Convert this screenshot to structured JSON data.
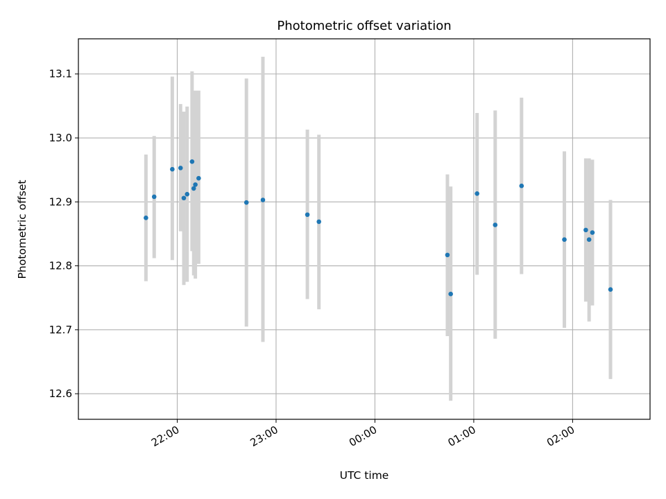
{
  "chart_data": {
    "type": "scatter",
    "title": "Photometric offset variation",
    "xlabel": "UTC time",
    "ylabel": "Photometric offset",
    "x_axis": {
      "kind": "time",
      "start": "21:00",
      "end": "02:47",
      "ticks": [
        "22:00",
        "23:00",
        "00:00",
        "01:00",
        "02:00"
      ],
      "tick_label_rotation_deg": 30
    },
    "ylim": [
      12.56,
      13.155
    ],
    "yticks": [
      "12.6",
      "12.7",
      "12.8",
      "12.9",
      "13.0",
      "13.1"
    ],
    "grid": true,
    "colors": {
      "point": "#1f77b4",
      "errorbar": "#d3d3d3",
      "grid": "#b0b0b0"
    },
    "series": [
      {
        "points": [
          {
            "t": "21:41",
            "y": 12.875,
            "lo": 12.776,
            "hi": 12.974
          },
          {
            "t": "21:46",
            "y": 12.908,
            "lo": 12.812,
            "hi": 13.003
          },
          {
            "t": "21:57",
            "y": 12.951,
            "lo": 12.809,
            "hi": 13.096
          },
          {
            "t": "22:02",
            "y": 12.953,
            "lo": 12.854,
            "hi": 13.053
          },
          {
            "t": "22:09",
            "y": 12.963,
            "lo": 12.823,
            "hi": 13.104
          },
          {
            "t": "22:13",
            "y": 12.937,
            "lo": 12.803,
            "hi": 13.074
          },
          {
            "t": "22:04",
            "y": 12.906,
            "lo": 12.77,
            "hi": 13.041
          },
          {
            "t": "22:06",
            "y": 12.912,
            "lo": 12.775,
            "hi": 13.049
          },
          {
            "t": "22:10",
            "y": 12.921,
            "lo": 12.785,
            "hi": 13.057
          },
          {
            "t": "22:11",
            "y": 12.927,
            "lo": 12.78,
            "hi": 13.074
          },
          {
            "t": "22:42",
            "y": 12.899,
            "lo": 12.705,
            "hi": 13.093
          },
          {
            "t": "22:52",
            "y": 12.903,
            "lo": 12.681,
            "hi": 13.127
          },
          {
            "t": "23:19",
            "y": 12.88,
            "lo": 12.748,
            "hi": 13.013
          },
          {
            "t": "23:26",
            "y": 12.869,
            "lo": 12.732,
            "hi": 13.005
          },
          {
            "t": "00:44",
            "y": 12.817,
            "lo": 12.69,
            "hi": 12.943
          },
          {
            "t": "00:46",
            "y": 12.756,
            "lo": 12.589,
            "hi": 12.924
          },
          {
            "t": "01:02",
            "y": 12.913,
            "lo": 12.786,
            "hi": 13.039
          },
          {
            "t": "01:13",
            "y": 12.864,
            "lo": 12.686,
            "hi": 13.043
          },
          {
            "t": "01:29",
            "y": 12.925,
            "lo": 12.787,
            "hi": 13.063
          },
          {
            "t": "01:55",
            "y": 12.841,
            "lo": 12.703,
            "hi": 12.979
          },
          {
            "t": "02:08",
            "y": 12.856,
            "lo": 12.744,
            "hi": 12.968
          },
          {
            "t": "02:10",
            "y": 12.841,
            "lo": 12.713,
            "hi": 12.968
          },
          {
            "t": "02:12",
            "y": 12.852,
            "lo": 12.738,
            "hi": 12.966
          },
          {
            "t": "02:23",
            "y": 12.763,
            "lo": 12.623,
            "hi": 12.903
          }
        ]
      }
    ]
  }
}
